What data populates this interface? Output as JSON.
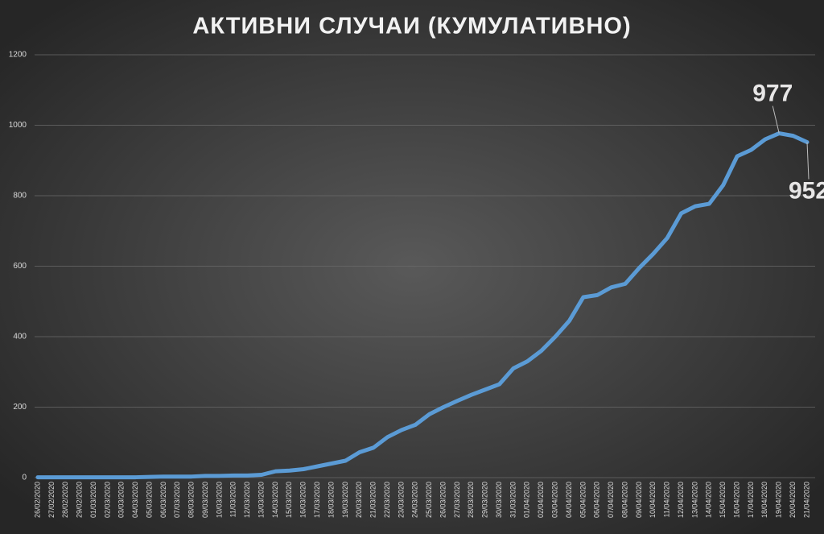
{
  "chart_data": {
    "type": "line",
    "title": "АКТИВНИ СЛУЧАИ (КУМУЛАТИВНО)",
    "categories": [
      "26/02/2020",
      "27/02/2020",
      "28/02/2020",
      "29/02/2020",
      "01/03/2020",
      "02/03/2020",
      "03/03/2020",
      "04/03/2020",
      "05/03/2020",
      "06/03/2020",
      "07/03/2020",
      "08/03/2020",
      "09/03/2020",
      "10/03/2020",
      "11/03/2020",
      "12/03/2020",
      "13/03/2020",
      "14/03/2020",
      "15/03/2020",
      "16/03/2020",
      "17/03/2020",
      "18/03/2020",
      "19/03/2020",
      "20/03/2020",
      "21/03/2020",
      "22/03/2020",
      "23/03/2020",
      "24/03/2020",
      "25/03/2020",
      "26/03/2020",
      "27/03/2020",
      "28/03/2020",
      "29/03/2020",
      "30/03/2020",
      "31/03/2020",
      "01/04/2020",
      "02/04/2020",
      "03/04/2020",
      "04/04/2020",
      "05/04/2020",
      "06/04/2020",
      "07/04/2020",
      "08/04/2020",
      "09/04/2020",
      "10/04/2020",
      "11/04/2020",
      "12/04/2020",
      "13/04/2020",
      "14/04/2020",
      "15/04/2020",
      "16/04/2020",
      "17/04/2020",
      "18/04/2020",
      "19/04/2020",
      "20/04/2020",
      "21/04/2020"
    ],
    "series": [
      {
        "name": "Активни случаи",
        "color": "#5b9bd5",
        "values": [
          1,
          1,
          1,
          1,
          1,
          1,
          1,
          1,
          2,
          3,
          3,
          3,
          5,
          5,
          6,
          6,
          8,
          18,
          20,
          24,
          32,
          40,
          48,
          72,
          85,
          115,
          135,
          150,
          180,
          200,
          218,
          235,
          250,
          265,
          310,
          330,
          360,
          400,
          445,
          512,
          518,
          540,
          550,
          595,
          635,
          680,
          750,
          770,
          777,
          830,
          912,
          930,
          960,
          977,
          970,
          952
        ]
      }
    ],
    "labeled_points": [
      53,
      55
    ],
    "ylim": [
      0,
      1200
    ],
    "yticks": [
      0,
      200,
      400,
      600,
      800,
      1000,
      1200
    ],
    "grid": true
  }
}
